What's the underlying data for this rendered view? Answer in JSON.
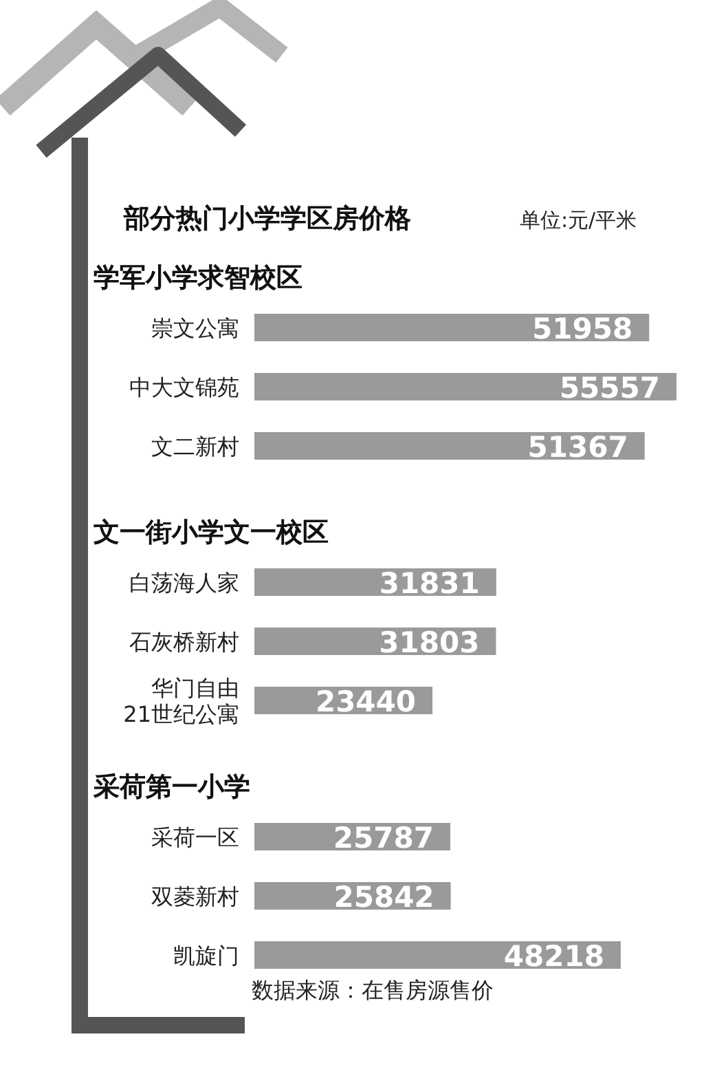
{
  "chart_data": [
    {
      "type": "bar",
      "orientation": "horizontal",
      "title": "部分热门小学学区房价格",
      "subtitle": "学军小学求智校区",
      "annotations": [
        "单位:元/平米"
      ],
      "categories": [
        "崇文公寓",
        "中大文锦苑",
        "文二新村"
      ],
      "values": [
        51958,
        55557,
        51367
      ],
      "color": "#9a9a9a",
      "data_labels": true
    },
    {
      "type": "bar",
      "orientation": "horizontal",
      "title": "文一街小学文一校区",
      "categories": [
        "白荡海人家",
        "石灰桥新村",
        "华门自由\n21世纪公寓"
      ],
      "values": [
        31831,
        31803,
        23440
      ],
      "color": "#9a9a9a",
      "data_labels": true
    },
    {
      "type": "bar",
      "orientation": "horizontal",
      "title": "采荷第一小学",
      "annotations": [
        "数据来源：在售房源售价"
      ],
      "categories": [
        "采荷一区",
        "双菱新村",
        "凯旋门"
      ],
      "values": [
        25787,
        25842,
        48218
      ],
      "color": "#9a9a9a",
      "data_labels": true
    }
  ]
}
